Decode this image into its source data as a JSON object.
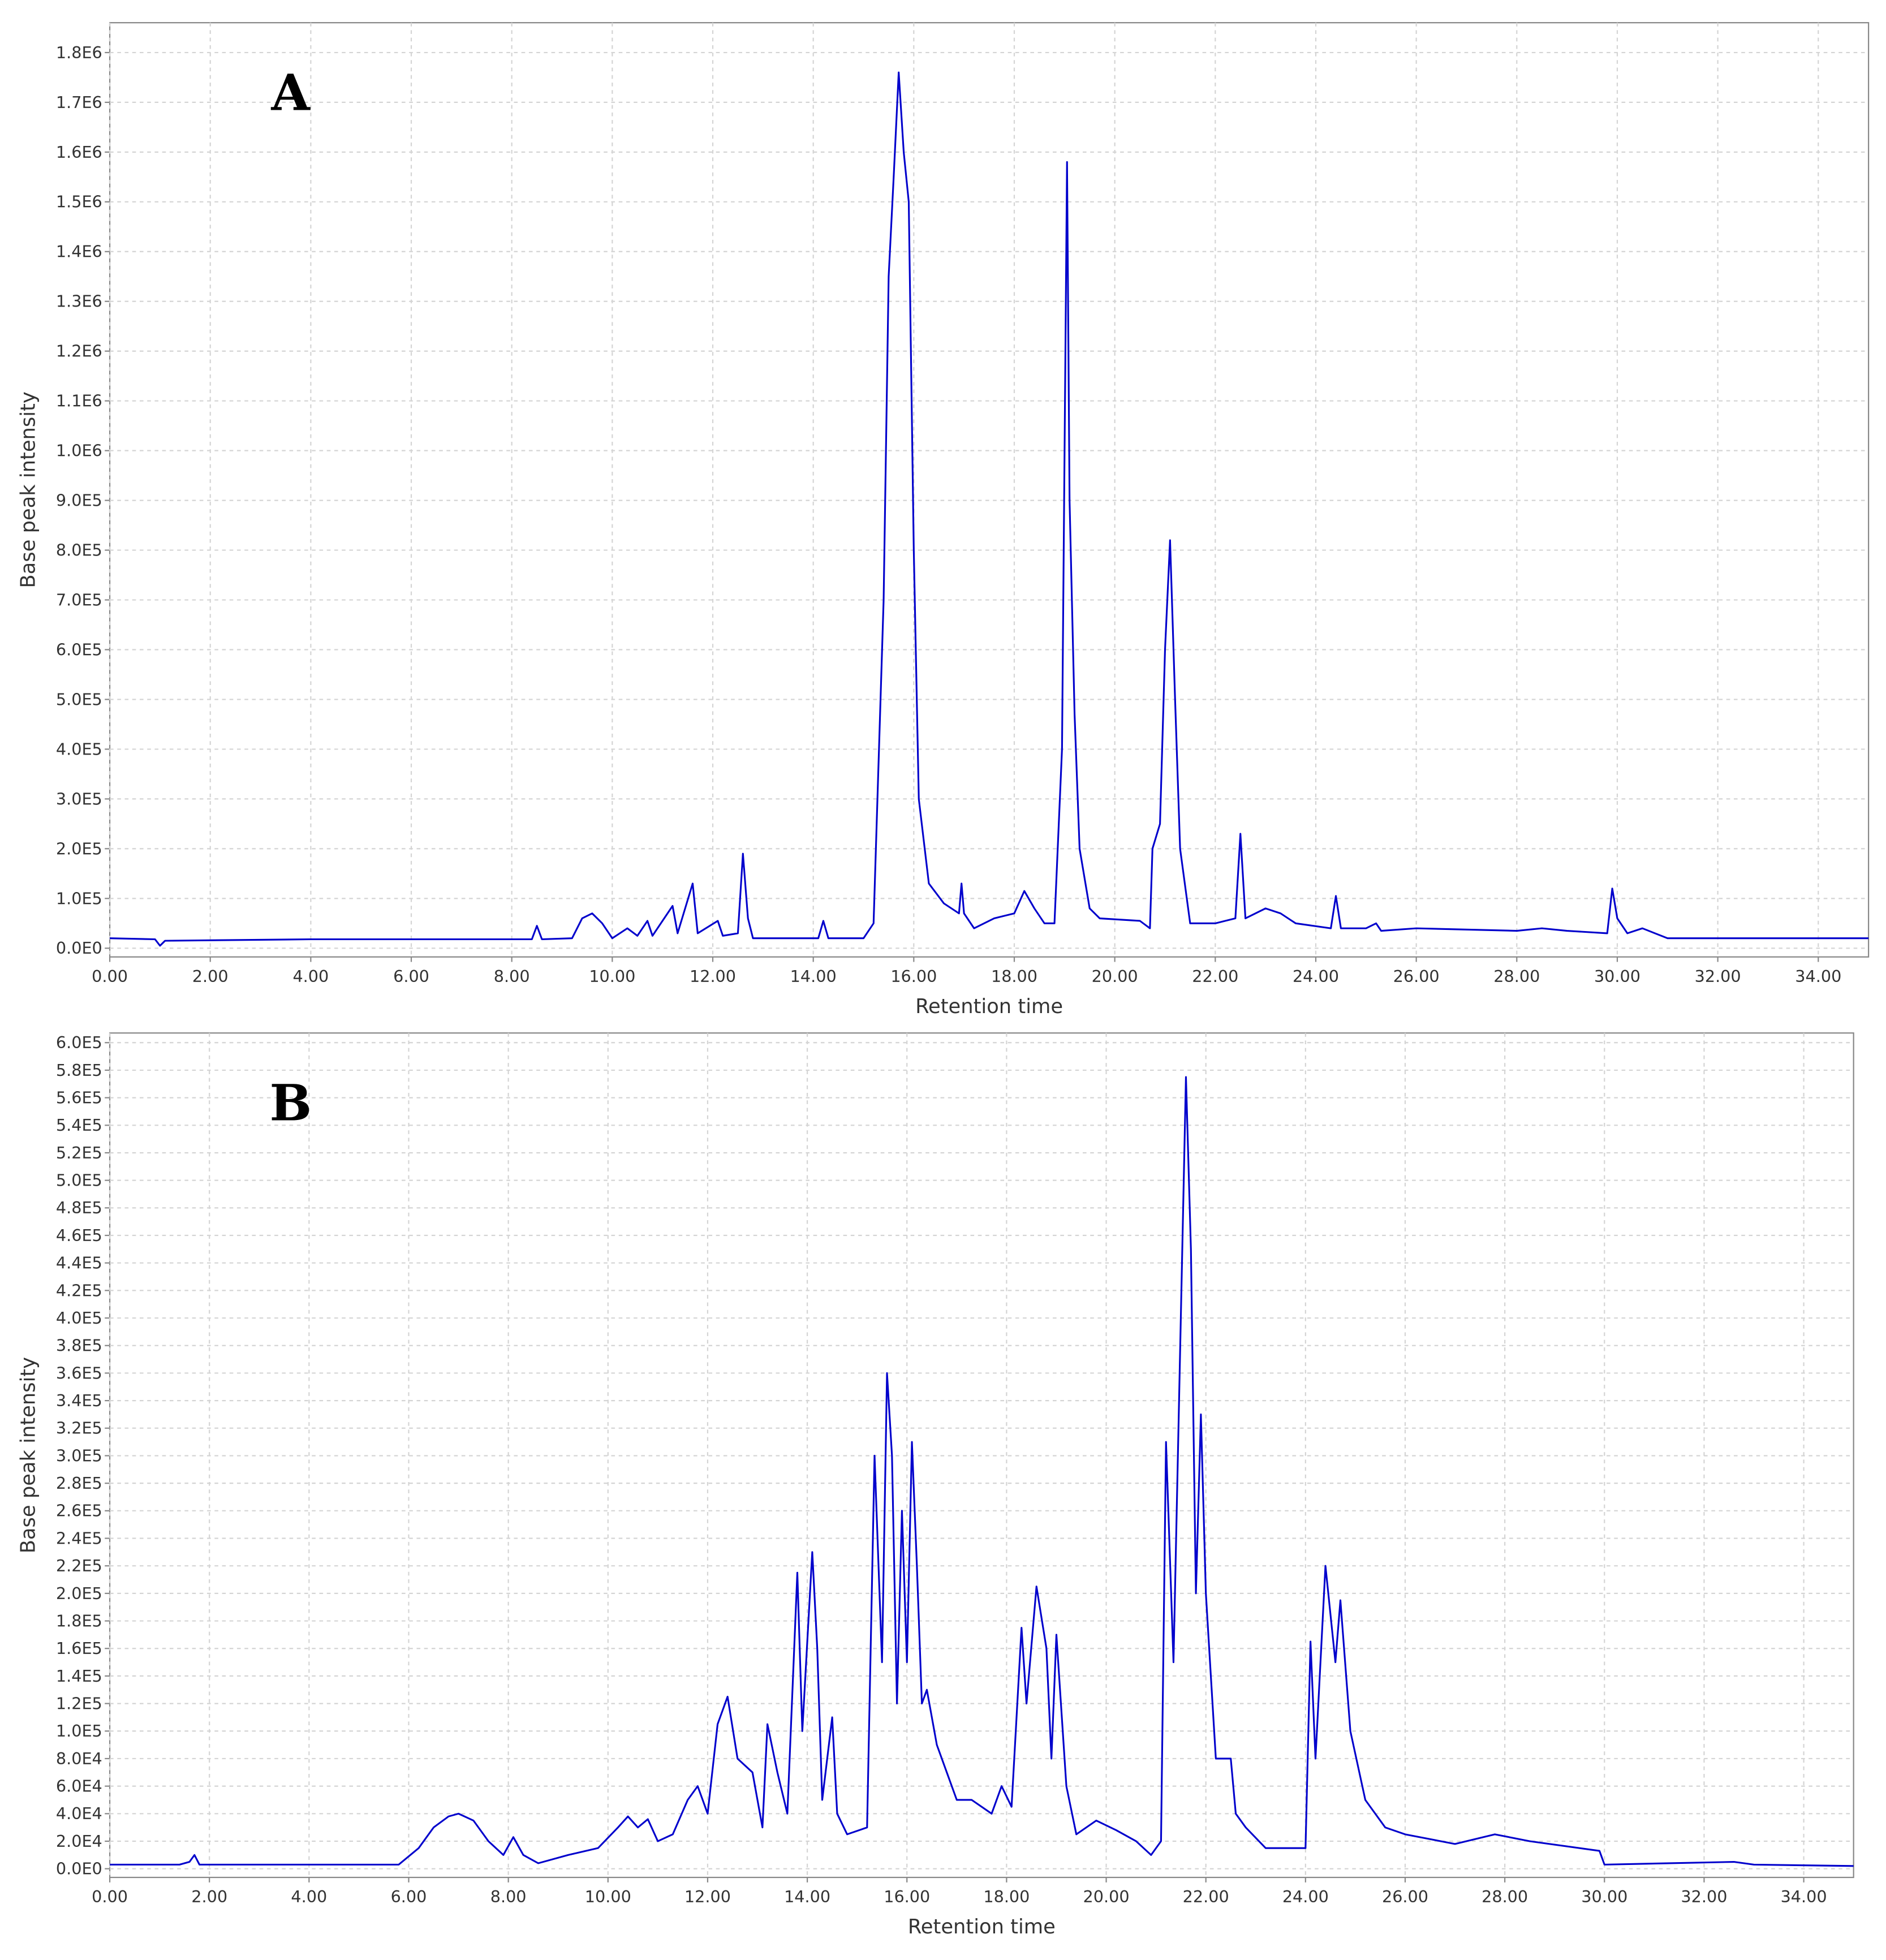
{
  "chart_data": [
    {
      "type": "line",
      "annotation": "A",
      "xlabel": "Retention time",
      "ylabel": "Base peak intensity",
      "xlim": [
        0,
        35
      ],
      "ylim": [
        -17500,
        1860000
      ],
      "grid": true,
      "xticks": [
        {
          "value": 0,
          "label": "0.00"
        },
        {
          "value": 2,
          "label": "2.00"
        },
        {
          "value": 4,
          "label": "4.00"
        },
        {
          "value": 6,
          "label": "6.00"
        },
        {
          "value": 8,
          "label": "8.00"
        },
        {
          "value": 10,
          "label": "10.00"
        },
        {
          "value": 12,
          "label": "12.00"
        },
        {
          "value": 14,
          "label": "14.00"
        },
        {
          "value": 16,
          "label": "16.00"
        },
        {
          "value": 18,
          "label": "18.00"
        },
        {
          "value": 20,
          "label": "20.00"
        },
        {
          "value": 22,
          "label": "22.00"
        },
        {
          "value": 24,
          "label": "24.00"
        },
        {
          "value": 26,
          "label": "26.00"
        },
        {
          "value": 28,
          "label": "28.00"
        },
        {
          "value": 30,
          "label": "30.00"
        },
        {
          "value": 32,
          "label": "32.00"
        },
        {
          "value": 34,
          "label": "34.00"
        }
      ],
      "yticks": [
        {
          "value": 0,
          "label": "0.0E0"
        },
        {
          "value": 100000,
          "label": "1.0E5"
        },
        {
          "value": 200000,
          "label": "2.0E5"
        },
        {
          "value": 300000,
          "label": "3.0E5"
        },
        {
          "value": 400000,
          "label": "4.0E5"
        },
        {
          "value": 500000,
          "label": "5.0E5"
        },
        {
          "value": 600000,
          "label": "6.0E5"
        },
        {
          "value": 700000,
          "label": "7.0E5"
        },
        {
          "value": 800000,
          "label": "8.0E5"
        },
        {
          "value": 900000,
          "label": "9.0E5"
        },
        {
          "value": 1000000,
          "label": "1.0E6"
        },
        {
          "value": 1100000,
          "label": "1.1E6"
        },
        {
          "value": 1200000,
          "label": "1.2E6"
        },
        {
          "value": 1300000,
          "label": "1.3E6"
        },
        {
          "value": 1400000,
          "label": "1.4E6"
        },
        {
          "value": 1500000,
          "label": "1.5E6"
        },
        {
          "value": 1600000,
          "label": "1.6E6"
        },
        {
          "value": 1700000,
          "label": "1.7E6"
        },
        {
          "value": 1800000,
          "label": "1.8E6"
        }
      ],
      "x": [
        0,
        0.9,
        1.0,
        1.1,
        4,
        8.4,
        8.5,
        8.6,
        9.2,
        9.4,
        9.6,
        9.8,
        10.0,
        10.3,
        10.5,
        10.7,
        10.8,
        11.2,
        11.3,
        11.6,
        11.7,
        12.1,
        12.2,
        12.5,
        12.6,
        12.7,
        12.8,
        14.1,
        14.2,
        14.3,
        15.0,
        15.2,
        15.4,
        15.5,
        15.6,
        15.7,
        15.8,
        15.9,
        16.0,
        16.1,
        16.3,
        16.6,
        16.9,
        16.95,
        17.0,
        17.2,
        17.6,
        18.0,
        18.2,
        18.4,
        18.6,
        18.8,
        18.95,
        19.05,
        19.1,
        19.2,
        19.3,
        19.5,
        19.7,
        20.5,
        20.7,
        20.75,
        20.9,
        21.0,
        21.1,
        21.2,
        21.3,
        21.5,
        22.0,
        22.4,
        22.5,
        22.6,
        23.0,
        23.3,
        23.6,
        24.3,
        24.4,
        24.5,
        25.0,
        25.2,
        25.3,
        26.0,
        28.0,
        28.5,
        29.0,
        29.8,
        29.9,
        30.0,
        30.2,
        30.5,
        31.0,
        35.0
      ],
      "series": [
        {
          "color": "#0000cc",
          "values": [
            20000,
            18000,
            5000,
            15000,
            18000,
            18000,
            45000,
            18000,
            20000,
            60000,
            70000,
            50000,
            20000,
            40000,
            25000,
            55000,
            25000,
            85000,
            30000,
            130000,
            30000,
            55000,
            25000,
            30000,
            190000,
            60000,
            20000,
            20000,
            55000,
            20000,
            20000,
            50000,
            700000,
            1350000,
            1550000,
            1760000,
            1600000,
            1500000,
            800000,
            300000,
            130000,
            90000,
            70000,
            130000,
            70000,
            40000,
            60000,
            70000,
            115000,
            80000,
            50000,
            50000,
            400000,
            1580000,
            900000,
            470000,
            200000,
            80000,
            60000,
            55000,
            40000,
            200000,
            250000,
            600000,
            820000,
            500000,
            200000,
            50000,
            50000,
            60000,
            230000,
            60000,
            80000,
            70000,
            50000,
            40000,
            105000,
            40000,
            40000,
            50000,
            35000,
            40000,
            35000,
            40000,
            35000,
            30000,
            120000,
            60000,
            30000,
            40000,
            20000,
            20000
          ]
        }
      ]
    },
    {
      "type": "line",
      "annotation": "B",
      "xlabel": "Retention time",
      "ylabel": "Base peak intensity",
      "xlim": [
        0,
        35
      ],
      "ylim": [
        -6300,
        607000
      ],
      "grid": true,
      "xticks": [
        {
          "value": 0,
          "label": "0.00"
        },
        {
          "value": 2,
          "label": "2.00"
        },
        {
          "value": 4,
          "label": "4.00"
        },
        {
          "value": 6,
          "label": "6.00"
        },
        {
          "value": 8,
          "label": "8.00"
        },
        {
          "value": 10,
          "label": "10.00"
        },
        {
          "value": 12,
          "label": "12.00"
        },
        {
          "value": 14,
          "label": "14.00"
        },
        {
          "value": 16,
          "label": "16.00"
        },
        {
          "value": 18,
          "label": "18.00"
        },
        {
          "value": 20,
          "label": "20.00"
        },
        {
          "value": 22,
          "label": "22.00"
        },
        {
          "value": 24,
          "label": "24.00"
        },
        {
          "value": 26,
          "label": "26.00"
        },
        {
          "value": 28,
          "label": "28.00"
        },
        {
          "value": 30,
          "label": "30.00"
        },
        {
          "value": 32,
          "label": "32.00"
        },
        {
          "value": 34,
          "label": "34.00"
        }
      ],
      "yticks": [
        {
          "value": 0,
          "label": "0.0E0"
        },
        {
          "value": 20000,
          "label": "2.0E4"
        },
        {
          "value": 40000,
          "label": "4.0E4"
        },
        {
          "value": 60000,
          "label": "6.0E4"
        },
        {
          "value": 80000,
          "label": "8.0E4"
        },
        {
          "value": 100000,
          "label": "1.0E5"
        },
        {
          "value": 120000,
          "label": "1.2E5"
        },
        {
          "value": 140000,
          "label": "1.4E5"
        },
        {
          "value": 160000,
          "label": "1.6E5"
        },
        {
          "value": 180000,
          "label": "1.8E5"
        },
        {
          "value": 200000,
          "label": "2.0E5"
        },
        {
          "value": 220000,
          "label": "2.2E5"
        },
        {
          "value": 240000,
          "label": "2.4E5"
        },
        {
          "value": 260000,
          "label": "2.6E5"
        },
        {
          "value": 280000,
          "label": "2.8E5"
        },
        {
          "value": 300000,
          "label": "3.0E5"
        },
        {
          "value": 320000,
          "label": "3.2E5"
        },
        {
          "value": 340000,
          "label": "3.4E5"
        },
        {
          "value": 360000,
          "label": "3.6E5"
        },
        {
          "value": 380000,
          "label": "3.8E5"
        },
        {
          "value": 400000,
          "label": "4.0E5"
        },
        {
          "value": 420000,
          "label": "4.2E5"
        },
        {
          "value": 440000,
          "label": "4.4E5"
        },
        {
          "value": 460000,
          "label": "4.6E5"
        },
        {
          "value": 480000,
          "label": "4.8E5"
        },
        {
          "value": 500000,
          "label": "5.0E5"
        },
        {
          "value": 520000,
          "label": "5.2E5"
        },
        {
          "value": 540000,
          "label": "5.4E5"
        },
        {
          "value": 560000,
          "label": "5.6E5"
        },
        {
          "value": 580000,
          "label": "5.8E5"
        },
        {
          "value": 600000,
          "label": "6.0E5"
        }
      ],
      "x": [
        0,
        1.4,
        1.6,
        1.7,
        1.8,
        5.8,
        6.2,
        6.5,
        6.8,
        7.0,
        7.3,
        7.6,
        7.9,
        8.1,
        8.3,
        8.6,
        9.2,
        9.8,
        10.2,
        10.4,
        10.6,
        10.8,
        11.0,
        11.3,
        11.6,
        11.8,
        12.0,
        12.2,
        12.4,
        12.6,
        12.9,
        13.1,
        13.2,
        13.4,
        13.6,
        13.8,
        13.9,
        14.1,
        14.2,
        14.3,
        14.5,
        14.6,
        14.8,
        15.2,
        15.35,
        15.5,
        15.6,
        15.7,
        15.8,
        15.9,
        16.0,
        16.1,
        16.2,
        16.3,
        16.4,
        16.6,
        16.8,
        17.0,
        17.3,
        17.7,
        17.9,
        18.1,
        18.3,
        18.4,
        18.6,
        18.8,
        18.9,
        19.0,
        19.2,
        19.4,
        19.8,
        20.2,
        20.6,
        20.9,
        21.1,
        21.2,
        21.35,
        21.6,
        21.7,
        21.8,
        21.9,
        22.0,
        22.2,
        22.5,
        22.6,
        22.8,
        23.2,
        23.6,
        24.0,
        24.1,
        24.2,
        24.4,
        24.6,
        24.7,
        24.9,
        25.2,
        25.6,
        26.0,
        27.0,
        27.8,
        28.5,
        29.9,
        30.0,
        32.6,
        33.0,
        35.0
      ],
      "series": [
        {
          "color": "#0000cc",
          "values": [
            3000,
            3000,
            5000,
            10000,
            3000,
            3000,
            15000,
            30000,
            38000,
            40000,
            35000,
            20000,
            10000,
            23000,
            10000,
            4000,
            10000,
            15000,
            30000,
            38000,
            30000,
            36000,
            20000,
            25000,
            50000,
            60000,
            40000,
            105000,
            125000,
            80000,
            70000,
            30000,
            105000,
            70000,
            40000,
            215000,
            100000,
            230000,
            160000,
            50000,
            110000,
            40000,
            25000,
            30000,
            300000,
            150000,
            360000,
            300000,
            120000,
            260000,
            150000,
            310000,
            220000,
            120000,
            130000,
            90000,
            70000,
            50000,
            50000,
            40000,
            60000,
            45000,
            175000,
            120000,
            205000,
            160000,
            80000,
            170000,
            60000,
            25000,
            35000,
            28000,
            20000,
            10000,
            20000,
            310000,
            150000,
            575000,
            450000,
            200000,
            330000,
            200000,
            80000,
            80000,
            40000,
            30000,
            15000,
            15000,
            15000,
            165000,
            80000,
            220000,
            150000,
            195000,
            100000,
            50000,
            30000,
            25000,
            18000,
            25000,
            20000,
            13000,
            3000,
            5000,
            3000,
            2000
          ]
        }
      ]
    }
  ]
}
